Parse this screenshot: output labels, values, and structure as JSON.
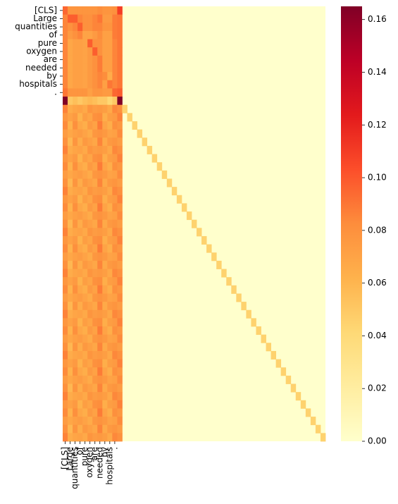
{
  "chart_data": {
    "type": "heatmap",
    "y_tick_labels": [
      "[CLS]",
      "Large",
      "quantities",
      "of",
      "pure",
      "oxygen",
      "are",
      "needed",
      "by",
      "hospitals",
      "."
    ],
    "x_tick_labels": [
      "[CLS]",
      "Large",
      "quantities",
      "of",
      "pure",
      "oxygen",
      "are",
      "needed",
      "by",
      "hospitals",
      "."
    ],
    "n_rows": 53,
    "n_cols": 53,
    "token_cols": 12,
    "colorbar": {
      "min": 0.0,
      "max": 0.165,
      "ticks": [
        "0.00",
        "0.02",
        "0.04",
        "0.06",
        "0.08",
        "0.10",
        "0.12",
        "0.14",
        "0.16"
      ],
      "tick_values": [
        0.0,
        0.02,
        0.04,
        0.06,
        0.08,
        0.1,
        0.12,
        0.14,
        0.16
      ],
      "colormap": "YlOrRd",
      "stops": [
        [
          0.0,
          "#ffffcc"
        ],
        [
          0.125,
          "#ffeda0"
        ],
        [
          0.25,
          "#fed976"
        ],
        [
          0.375,
          "#feb24c"
        ],
        [
          0.5,
          "#fd8d3c"
        ],
        [
          0.625,
          "#fc4e2a"
        ],
        [
          0.75,
          "#e31a1c"
        ],
        [
          0.875,
          "#bd0026"
        ],
        [
          1.0,
          "#800026"
        ]
      ]
    },
    "top_rows": [
      [
        0.095,
        0.078,
        0.078,
        0.078,
        0.078,
        0.078,
        0.078,
        0.082,
        0.078,
        0.078,
        0.08,
        0.11
      ],
      [
        0.085,
        0.098,
        0.098,
        0.085,
        0.08,
        0.08,
        0.085,
        0.09,
        0.075,
        0.075,
        0.088,
        0.09
      ],
      [
        0.085,
        0.08,
        0.085,
        0.098,
        0.08,
        0.08,
        0.085,
        0.085,
        0.078,
        0.078,
        0.088,
        0.09
      ],
      [
        0.085,
        0.075,
        0.08,
        0.085,
        0.07,
        0.07,
        0.075,
        0.082,
        0.072,
        0.072,
        0.088,
        0.09
      ],
      [
        0.085,
        0.068,
        0.072,
        0.072,
        0.07,
        0.098,
        0.08,
        0.08,
        0.072,
        0.072,
        0.085,
        0.09
      ],
      [
        0.085,
        0.068,
        0.072,
        0.072,
        0.07,
        0.075,
        0.098,
        0.08,
        0.072,
        0.072,
        0.085,
        0.09
      ],
      [
        0.085,
        0.068,
        0.072,
        0.072,
        0.07,
        0.075,
        0.08,
        0.088,
        0.072,
        0.072,
        0.085,
        0.09
      ],
      [
        0.085,
        0.068,
        0.072,
        0.072,
        0.07,
        0.075,
        0.08,
        0.088,
        0.072,
        0.072,
        0.085,
        0.09
      ],
      [
        0.085,
        0.068,
        0.072,
        0.072,
        0.07,
        0.075,
        0.08,
        0.085,
        0.082,
        0.065,
        0.085,
        0.09
      ],
      [
        0.085,
        0.068,
        0.072,
        0.072,
        0.07,
        0.075,
        0.08,
        0.085,
        0.072,
        0.09,
        0.085,
        0.09
      ],
      [
        0.09,
        0.078,
        0.078,
        0.078,
        0.078,
        0.072,
        0.078,
        0.078,
        0.075,
        0.075,
        0.095,
        0.098
      ],
      [
        0.165,
        0.05,
        0.055,
        0.05,
        0.055,
        0.058,
        0.055,
        0.05,
        0.05,
        0.042,
        0.05,
        0.165
      ]
    ],
    "body_col_values": [
      0.08,
      0.065,
      0.075,
      0.068,
      0.07,
      0.072,
      0.074,
      0.082,
      0.07,
      0.07,
      0.078,
      0.08
    ],
    "diagonal_value": 0.045,
    "background_value": 0.0
  }
}
